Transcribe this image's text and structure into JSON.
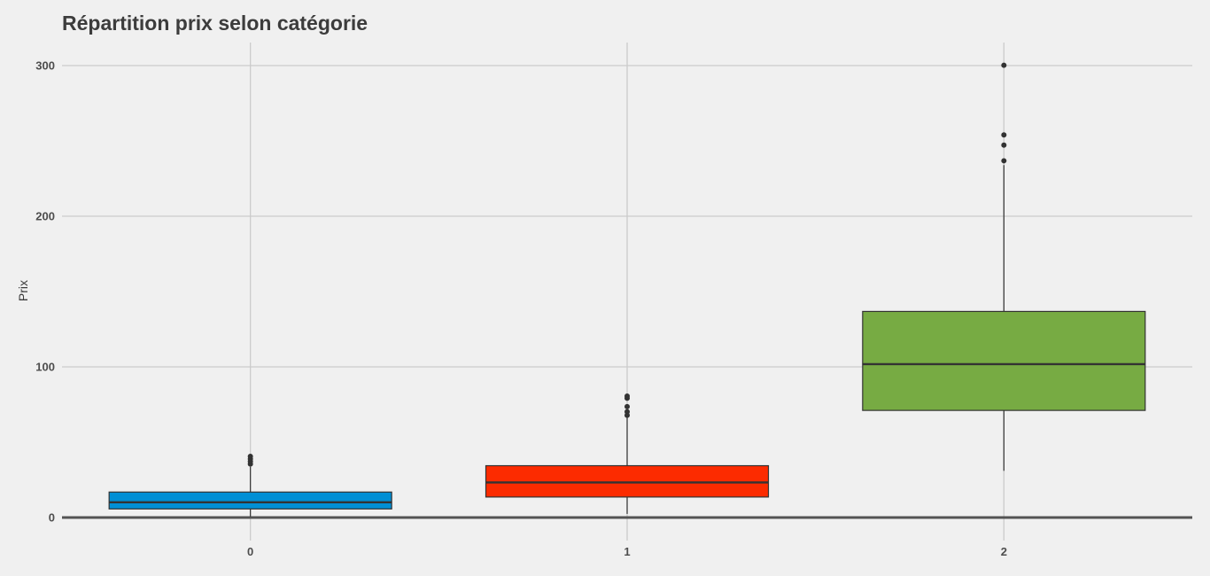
{
  "chart_data": {
    "type": "boxplot",
    "title": "Répartition prix selon catégorie",
    "xlabel": "",
    "ylabel": "Prix",
    "ylim": [
      -15,
      315
    ],
    "yticks": [
      0,
      100,
      200,
      300
    ],
    "grid": true,
    "legend": "none",
    "categories": [
      "0",
      "1",
      "2"
    ],
    "boxes": [
      {
        "category": "0",
        "color": "#008fd5",
        "whisker_low": 0.6,
        "q1": 5.7,
        "median": 10.1,
        "q3": 16.9,
        "whisker_high": 33.7,
        "outliers": [
          35.5,
          37.2,
          38.9,
          40.6
        ]
      },
      {
        "category": "1",
        "color": "#fc2b00",
        "whisker_low": 2.4,
        "q1": 13.6,
        "median": 23.3,
        "q3": 34.4,
        "whisker_high": 66.8,
        "outliers": [
          67.9,
          70.2,
          73.6,
          79.2,
          80.6
        ]
      },
      {
        "category": "2",
        "color": "#77ab43",
        "whisker_low": 31.0,
        "q1": 71.1,
        "median": 101.8,
        "q3": 136.8,
        "whisker_high": 234.0,
        "outliers": [
          236.8,
          247.2,
          254.0,
          300.2
        ]
      }
    ]
  }
}
